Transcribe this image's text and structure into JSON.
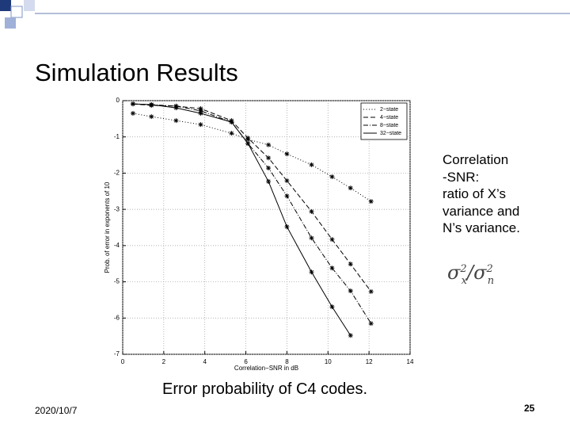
{
  "slide": {
    "title": "Simulation Results",
    "side_text": [
      "Correlation",
      "-SNR:",
      "ratio of X’s",
      "variance and",
      "N’s variance."
    ],
    "formula": {
      "numerator": "σ",
      "numerator_sub": "x",
      "numerator_sup": "2",
      "divider": "/",
      "denominator": "σ",
      "denominator_sub": "n",
      "denominator_sup": "2"
    },
    "caption": "Error probability of C4 codes.",
    "date": "2020/10/7",
    "page_number": "25"
  },
  "chart_data": {
    "type": "line",
    "x_label": "Correlation−SNR in dB",
    "y_label": "Prob. of error in exponents of 10",
    "x": [
      0.5,
      1.4,
      2.6,
      3.8,
      5.3,
      6.1,
      7.1,
      8,
      9.2,
      10.2,
      11.1,
      12.1
    ],
    "series": [
      {
        "name": "2−state",
        "color": "#000000",
        "style": "dotted",
        "values": [
          -0.35,
          -0.44,
          -0.55,
          -0.66,
          -0.9,
          -1.07,
          -1.22,
          -1.47,
          -1.77,
          -2.1,
          -2.41,
          -2.78
        ]
      },
      {
        "name": "4−state",
        "color": "#000000",
        "style": "dashed",
        "values": [
          -0.09,
          -0.13,
          -0.15,
          -0.22,
          -0.55,
          -1.03,
          -1.58,
          -2.21,
          -3.06,
          -3.83,
          -4.51,
          -5.27
        ]
      },
      {
        "name": "8−state",
        "color": "#000000",
        "style": "dashdot",
        "values": [
          -0.09,
          -0.11,
          -0.15,
          -0.28,
          -0.59,
          -1.18,
          -1.86,
          -2.63,
          -3.79,
          -4.62,
          -5.25,
          -6.15
        ]
      },
      {
        "name": "32−state",
        "color": "#000000",
        "style": "solid",
        "values": [
          -0.09,
          -0.11,
          -0.2,
          -0.35,
          -0.59,
          -1.18,
          -2.23,
          -3.48,
          -4.73,
          -5.69,
          -6.48,
          null
        ]
      }
    ],
    "xlim": [
      0,
      14
    ],
    "xticks": [
      0,
      2,
      4,
      6,
      8,
      10,
      12,
      14
    ],
    "ylim": [
      -7,
      0
    ],
    "yticks": [
      0,
      -1,
      -2,
      -3,
      -4,
      -5,
      -6,
      -7
    ],
    "grid": true,
    "legend": "top-right",
    "marker": "asterisk"
  }
}
